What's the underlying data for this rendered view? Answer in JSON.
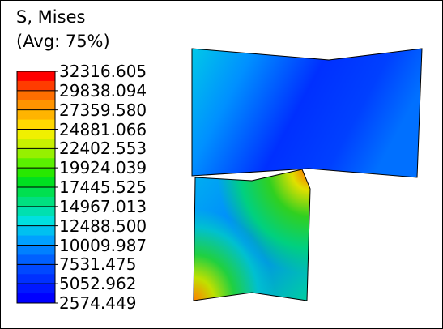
{
  "legend": {
    "title": "S, Mises",
    "subtitle": "(Avg: 75%)",
    "labels": [
      "32316.605",
      "29838.094",
      "27359.580",
      "24881.066",
      "22402.553",
      "19924.039",
      "17445.525",
      "14967.013",
      "12488.500",
      "10009.987",
      "7531.475",
      "5052.962",
      "2574.449"
    ]
  }
}
